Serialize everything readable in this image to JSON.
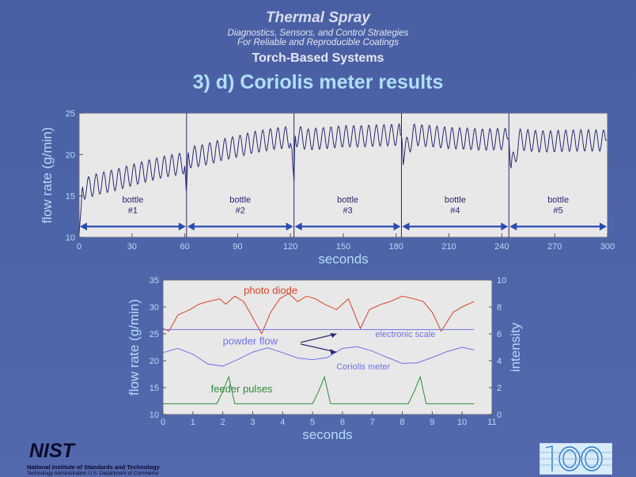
{
  "header": {
    "title": "Thermal Spray",
    "subtitle_line1": "Diagnostics, Sensors, and Control Strategies",
    "subtitle_line2": "For Reliable and Reproducible Coatings",
    "section": "Torch-Based Systems",
    "slide_title": "3) d) Coriolis meter results"
  },
  "footer": {
    "logo_text": "NIST",
    "org_name": "National Institute of Standards and Technology",
    "org_sub": "Technology Administration  U.S. Department of Commerce"
  },
  "colors": {
    "plot_bg": "#e8e8e8",
    "trace_dark": "#2a2870",
    "axis_label": "#b3dcf5",
    "arrow_blue": "#2a4bb0",
    "photo_diode": "#d8432a",
    "coriolis": "#6f72e6",
    "feeder": "#2e8b3a"
  },
  "chart_data": [
    {
      "type": "line",
      "xlabel": "seconds",
      "ylabel": "flow rate (g/min)",
      "xlim": [
        0,
        300
      ],
      "ylim": [
        10,
        25
      ],
      "xticks": [
        "0",
        "30",
        "60",
        "90",
        "120",
        "150",
        "180",
        "210",
        "240",
        "270",
        "300"
      ],
      "yticks": [
        "10",
        "15",
        "20",
        "25"
      ],
      "bottle_changes": [
        0,
        61,
        122,
        183,
        244,
        300
      ],
      "annotations": [
        {
          "label": "bottle",
          "number": "#1"
        },
        {
          "label": "bottle",
          "number": "#2"
        },
        {
          "label": "bottle",
          "number": "#3"
        },
        {
          "label": "bottle",
          "number": "#4"
        },
        {
          "label": "bottle",
          "number": "#5"
        }
      ],
      "series": [
        {
          "x": [
            0,
            2,
            10,
            20,
            30,
            40,
            50,
            60,
            61,
            61.5,
            70,
            80,
            90,
            100,
            110,
            120,
            122,
            122.5,
            130,
            140,
            150,
            160,
            170,
            183,
            184,
            190,
            200,
            210,
            220,
            230,
            244,
            245,
            250,
            260,
            270,
            280,
            290,
            300
          ],
          "y": [
            10.5,
            15.8,
            16.4,
            16.9,
            17.5,
            18.1,
            18.6,
            19.0,
            14.8,
            19.6,
            19.9,
            20.5,
            21.0,
            21.5,
            21.9,
            22.1,
            16.8,
            22.3,
            21.8,
            22.0,
            22.2,
            22.2,
            22.3,
            22.4,
            20.0,
            22.4,
            22.2,
            22.0,
            21.9,
            21.8,
            21.9,
            18.0,
            21.8,
            21.6,
            21.6,
            21.7,
            21.7,
            21.7
          ],
          "oscillation_amplitude": 1.3,
          "oscillation_period": 4.3
        }
      ]
    },
    {
      "type": "line",
      "xlabel": "seconds",
      "ylabel": "flow rate (g/min)",
      "ylabel_right": "intensity",
      "xlim": [
        0,
        11
      ],
      "ylim": [
        10,
        35
      ],
      "ylim_right": [
        0,
        10
      ],
      "xticks": [
        "0",
        "1",
        "2",
        "3",
        "4",
        "5",
        "6",
        "7",
        "8",
        "9",
        "10",
        "11"
      ],
      "yticks": [
        "10",
        "15",
        "20",
        "25",
        "30",
        "35"
      ],
      "yticks_right": [
        "0",
        "2",
        "4",
        "6",
        "8",
        "10"
      ],
      "annotations": [
        {
          "text": "photo diode"
        },
        {
          "text": "electronic scale"
        },
        {
          "text": "powder flow"
        },
        {
          "text": "Coriolis meter"
        },
        {
          "text": "feeder pulses"
        }
      ],
      "series": [
        {
          "name": "photo diode",
          "x": [
            0,
            0.2,
            0.5,
            0.9,
            1.2,
            1.5,
            1.9,
            2.1,
            2.4,
            2.7,
            3.0,
            3.3,
            3.6,
            3.9,
            4.2,
            4.5,
            4.8,
            5.1,
            5.4,
            5.8,
            6.2,
            6.6,
            6.9,
            7.3,
            7.6,
            8.0,
            8.4,
            8.7,
            9.0,
            9.3,
            9.7,
            10.0,
            10.4
          ],
          "y": [
            26,
            25.5,
            28.5,
            29.5,
            30.5,
            31,
            31.5,
            30.5,
            32,
            31,
            28,
            25,
            29,
            31.5,
            32.5,
            31,
            32,
            31.5,
            30.5,
            29.5,
            31.5,
            26,
            29.5,
            30.5,
            31,
            32,
            31.5,
            31,
            29,
            25.5,
            29,
            30,
            31
          ]
        },
        {
          "name": "electronic scale",
          "x": [
            0,
            10.4
          ],
          "y": [
            25.8,
            25.8
          ]
        },
        {
          "name": "Coriolis meter",
          "x": [
            0,
            0.5,
            1.0,
            1.5,
            2.0,
            2.5,
            3.0,
            3.5,
            4.0,
            4.5,
            5.0,
            5.5,
            6.0,
            6.5,
            7.0,
            7.5,
            8.0,
            8.5,
            9.0,
            9.5,
            10.0,
            10.4
          ],
          "y": [
            21.5,
            22.3,
            21.2,
            19.4,
            19.0,
            20.2,
            21.6,
            22.4,
            21.5,
            20.5,
            20.2,
            20.6,
            22.3,
            22.6,
            21.8,
            20.6,
            19.5,
            19.6,
            20.6,
            21.7,
            22.5,
            22.0
          ]
        },
        {
          "name": "feeder pulses",
          "x": [
            0,
            1.8,
            2.0,
            2.2,
            2.4,
            5.0,
            5.2,
            5.4,
            5.6,
            8.2,
            8.4,
            8.6,
            8.8,
            10.4
          ],
          "y": [
            12,
            12,
            14.3,
            17,
            12,
            12,
            14.3,
            17,
            12,
            12,
            14.3,
            17,
            12,
            12
          ]
        }
      ]
    }
  ]
}
